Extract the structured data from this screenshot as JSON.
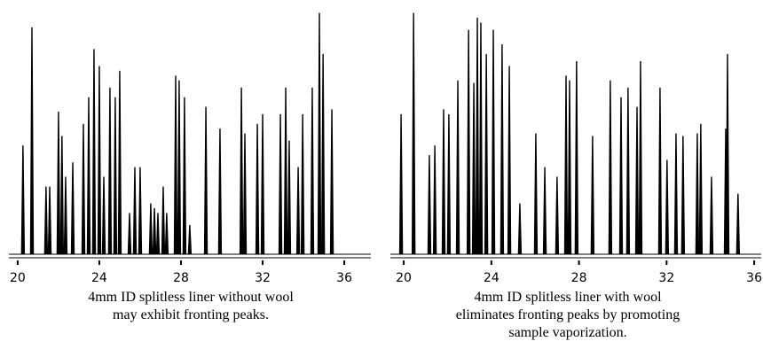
{
  "chart_data": [
    {
      "type": "chromatogram",
      "x": [
        20.26,
        20.7,
        21.39,
        21.57,
        22.0,
        22.17,
        22.35,
        22.7,
        23.22,
        23.48,
        23.74,
        24.0,
        24.22,
        24.52,
        24.78,
        25.0,
        25.48,
        25.74,
        26.0,
        26.52,
        26.7,
        26.87,
        27.13,
        27.3,
        27.74,
        27.91,
        28.17,
        28.43,
        29.22,
        29.91,
        30.96,
        31.13,
        31.74,
        32.0,
        32.87,
        33.13,
        33.3,
        33.74,
        33.96,
        34.43,
        34.78,
        34.96,
        35.39
      ],
      "values": [
        45,
        94,
        28,
        28,
        59,
        49,
        32,
        38,
        54,
        65,
        85,
        78,
        32,
        69,
        65,
        76,
        17,
        36,
        36,
        21,
        19,
        17,
        28,
        17,
        74,
        72,
        65,
        12,
        61,
        52,
        69,
        50,
        54,
        58,
        58,
        69,
        47,
        36,
        58,
        69,
        100,
        83,
        60
      ],
      "xlim": [
        19.57,
        37.3
      ],
      "xticks": [
        20,
        24,
        28,
        32,
        36
      ],
      "ylim": [
        0,
        100
      ],
      "caption": [
        "4mm ID splitless liner without wool",
        "may exhibit fronting peaks."
      ]
    },
    {
      "type": "chromatogram",
      "x": [
        19.88,
        20.45,
        21.17,
        21.42,
        21.82,
        22.06,
        22.47,
        22.96,
        23.2,
        23.36,
        23.52,
        23.77,
        24.09,
        24.49,
        24.82,
        25.3,
        26.03,
        26.44,
        27.0,
        27.41,
        27.57,
        27.89,
        28.62,
        29.43,
        29.92,
        30.24,
        30.65,
        30.81,
        31.7,
        32.02,
        32.43,
        32.75,
        33.4,
        33.56,
        34.05,
        34.7,
        34.78,
        35.26
      ],
      "values": [
        58,
        100,
        41,
        45,
        60,
        58,
        72,
        93,
        71,
        98,
        96,
        83,
        93,
        87,
        78,
        21,
        50,
        36,
        32,
        74,
        72,
        80,
        49,
        72,
        65,
        69,
        61,
        80,
        69,
        39,
        50,
        49,
        50,
        54,
        32,
        52,
        83,
        25
      ],
      "xlim": [
        19.39,
        36.32
      ],
      "xticks": [
        20,
        24,
        28,
        32,
        36
      ],
      "ylim": [
        0,
        100
      ],
      "caption": [
        "4mm ID splitless liner with wool",
        "eliminates fronting peaks by promoting",
        "sample vaporization."
      ]
    }
  ]
}
